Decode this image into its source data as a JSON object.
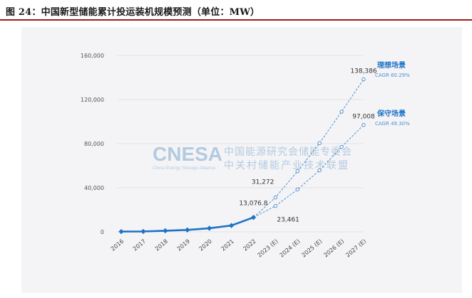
{
  "figure_title": "图 24：中国新型储能累计投运装机规模预测（单位：MW）",
  "watermark": {
    "logo": "CNESA",
    "logo_sub": "China Energy Storage Alliance",
    "line1": "中国能源研究会储能专委会",
    "line2": "中关村储能产业技术联盟"
  },
  "colors": {
    "accent": "#1f73c6",
    "title_rule": "#9e1b1b",
    "panel": "#f4f4f6",
    "grid": "#e2e2e6",
    "text": "#333333",
    "scenario": "#4f8fd0"
  },
  "chart_data": {
    "type": "line",
    "categories": [
      "2016",
      "2017",
      "2018",
      "2019",
      "2020",
      "2021",
      "2022",
      "2023 (E)",
      "2024 (E)",
      "2025 (E)",
      "2026 (E)",
      "2027 (E)"
    ],
    "ylim": [
      0,
      160000
    ],
    "yticks": [
      0,
      40000,
      80000,
      120000,
      160000
    ],
    "ytick_labels": [
      "0",
      "40,000",
      "80,000",
      "120,000",
      "160,000"
    ],
    "xlabel": "",
    "ylabel": "",
    "series": [
      {
        "name": "",
        "style": "solid",
        "x": [
          "2016",
          "2017",
          "2018",
          "2019",
          "2020",
          "2021",
          "2022"
        ],
        "values": [
          240,
          390,
          1020,
          1710,
          3270,
          5730,
          13076.8
        ]
      },
      {
        "name": "理想场景",
        "cagr": "CAGR 60.29%",
        "style": "dashed",
        "x": [
          "2022",
          "2023 (E)",
          "2024 (E)",
          "2025 (E)",
          "2026 (E)",
          "2027 (E)"
        ],
        "values": [
          13076.8,
          31272,
          55000,
          80500,
          109000,
          138386
        ]
      },
      {
        "name": "保守场景",
        "cagr": "CAGR 49.30%",
        "style": "dashed",
        "x": [
          "2022",
          "2023 (E)",
          "2024 (E)",
          "2025 (E)",
          "2026 (E)",
          "2027 (E)"
        ],
        "values": [
          13076.8,
          23461,
          38500,
          55800,
          77000,
          97008
        ]
      }
    ],
    "annotations": [
      {
        "text": "138,386",
        "x": "2027 (E)",
        "y": 138386
      },
      {
        "text": "97,008",
        "x": "2027 (E)",
        "y": 97008
      },
      {
        "text": "31,272",
        "x": "2023 (E)",
        "y": 31272
      },
      {
        "text": "23,461",
        "x": "2023 (E)",
        "y": 23461
      },
      {
        "text": "13,076.8",
        "x": "2022",
        "y": 13076.8
      }
    ]
  }
}
